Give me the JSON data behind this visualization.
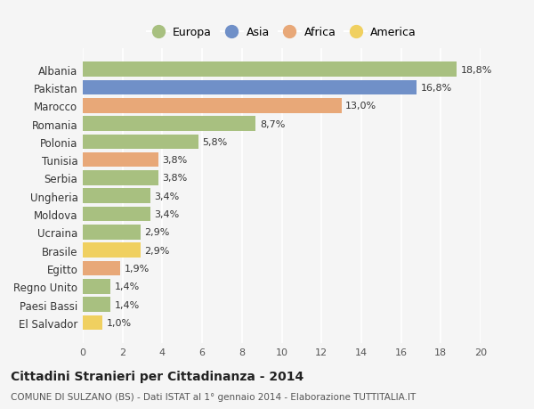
{
  "categories": [
    "El Salvador",
    "Paesi Bassi",
    "Regno Unito",
    "Egitto",
    "Brasile",
    "Ucraina",
    "Moldova",
    "Ungheria",
    "Serbia",
    "Tunisia",
    "Polonia",
    "Romania",
    "Marocco",
    "Pakistan",
    "Albania"
  ],
  "values": [
    1.0,
    1.4,
    1.4,
    1.9,
    2.9,
    2.9,
    3.4,
    3.4,
    3.8,
    3.8,
    5.8,
    8.7,
    13.0,
    16.8,
    18.8
  ],
  "labels": [
    "1,0%",
    "1,4%",
    "1,4%",
    "1,9%",
    "2,9%",
    "2,9%",
    "3,4%",
    "3,4%",
    "3,8%",
    "3,8%",
    "5,8%",
    "8,7%",
    "13,0%",
    "16,8%",
    "18,8%"
  ],
  "continent": [
    "America",
    "Europa",
    "Europa",
    "Africa",
    "America",
    "Europa",
    "Europa",
    "Europa",
    "Europa",
    "Africa",
    "Europa",
    "Europa",
    "Africa",
    "Asia",
    "Europa"
  ],
  "colors": {
    "Europa": "#a8c080",
    "Asia": "#7090c8",
    "Africa": "#e8a878",
    "America": "#f0d060"
  },
  "legend_order": [
    "Europa",
    "Asia",
    "Africa",
    "America"
  ],
  "title": "Cittadini Stranieri per Cittadinanza - 2014",
  "subtitle": "COMUNE DI SULZANO (BS) - Dati ISTAT al 1° gennaio 2014 - Elaborazione TUTTITALIA.IT",
  "xlim": [
    0,
    20
  ],
  "xticks": [
    0,
    2,
    4,
    6,
    8,
    10,
    12,
    14,
    16,
    18,
    20
  ],
  "background_color": "#f5f5f5",
  "plot_bg_color": "#f5f5f5",
  "grid_color": "#ffffff"
}
